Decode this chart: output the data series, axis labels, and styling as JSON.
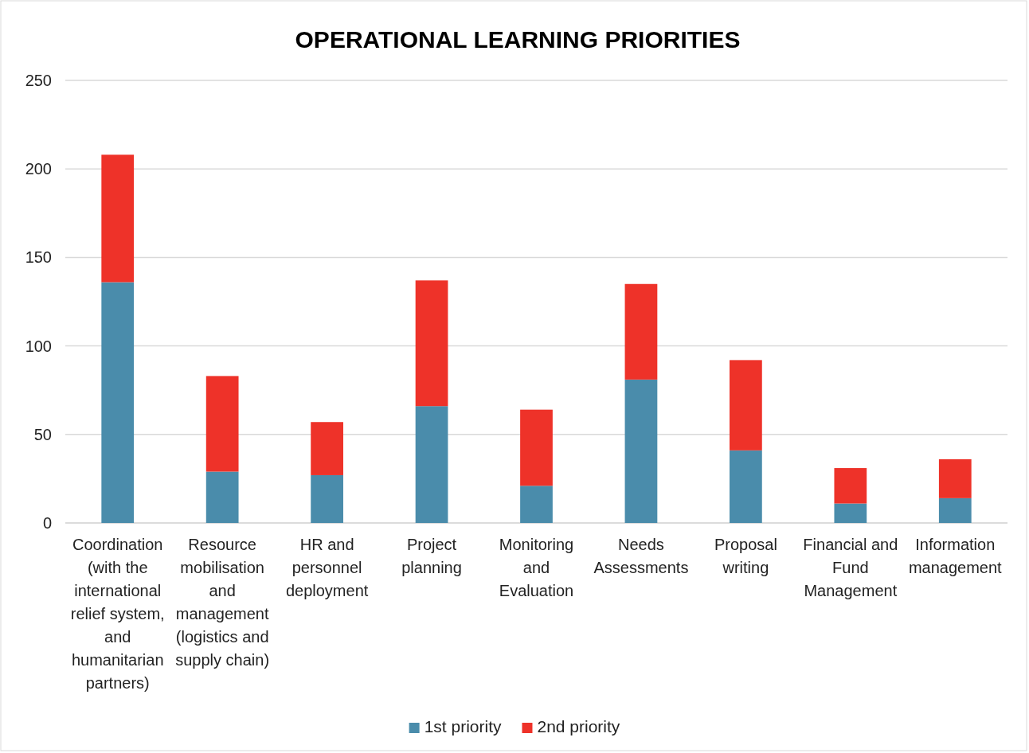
{
  "chart_data": {
    "type": "bar",
    "title": "OPERATIONAL LEARNING PRIORITIES",
    "stacked": true,
    "categories": [
      "Coordination (with the international relief system, and humanitarian partners)",
      "Resource mobilisation and management (logistics and supply chain)",
      "HR and personnel deployment",
      "Project planning",
      "Monitoring and Evaluation",
      "Needs Assessments",
      "Proposal writing",
      "Financial and Fund Management",
      "Information management"
    ],
    "series": [
      {
        "name": "1st priority",
        "color": "#4a8cab",
        "values": [
          136,
          29,
          27,
          66,
          21,
          81,
          41,
          11,
          14
        ]
      },
      {
        "name": "2nd priority",
        "color": "#ee3229",
        "values": [
          72,
          54,
          30,
          71,
          43,
          54,
          51,
          20,
          22
        ]
      }
    ],
    "ylim": [
      0,
      250
    ],
    "yticks": [
      0,
      50,
      100,
      150,
      200,
      250
    ],
    "grid": "y",
    "legend": "bottom"
  }
}
